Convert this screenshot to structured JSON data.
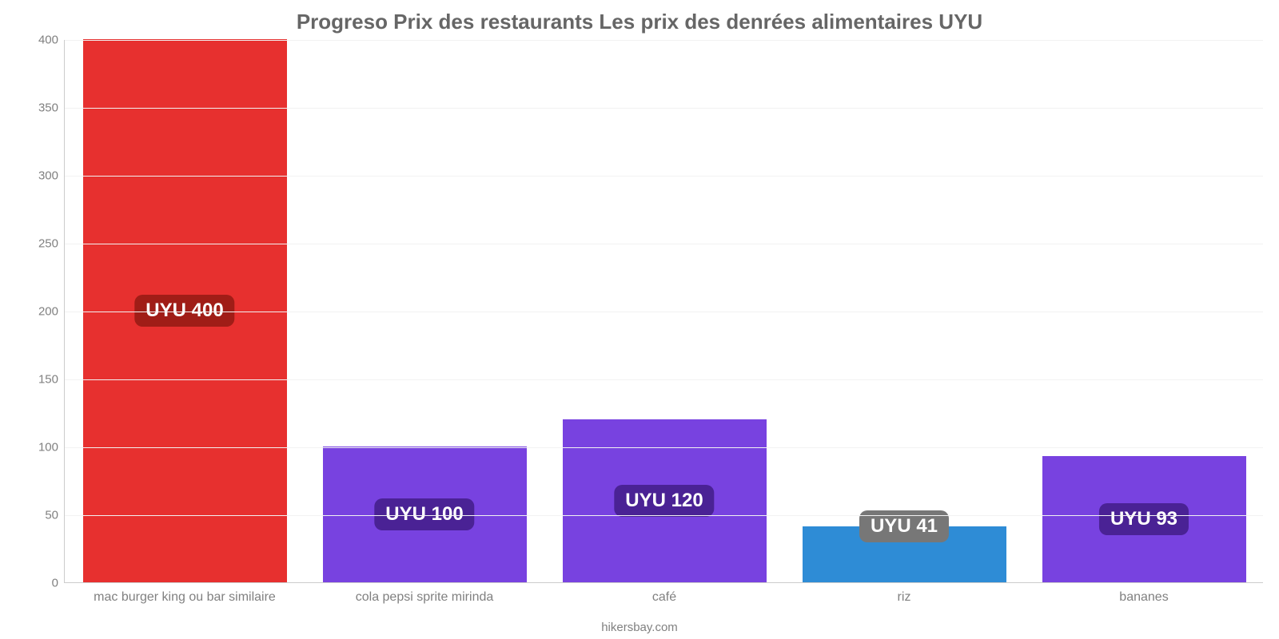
{
  "chart": {
    "type": "bar",
    "title": "Progreso Prix des restaurants Les prix des denrées alimentaires UYU",
    "title_fontsize": 26,
    "title_color": "#666666",
    "footer": "hikersbay.com",
    "footer_color": "#808080",
    "background_color": "#ffffff",
    "grid_color": "#f2f2f2",
    "axis_color": "#cccccc",
    "tick_color": "#808080",
    "tick_fontsize": 15,
    "xtick_fontsize": 16,
    "ylim": [
      0,
      400
    ],
    "ytick_step": 50,
    "bar_width": 0.85,
    "label_fontsize": 24,
    "label_text_color": "#ffffff",
    "label_radius": 10,
    "categories": [
      "mac burger king ou bar similaire",
      "cola pepsi sprite mirinda",
      "café",
      "riz",
      "bananes"
    ],
    "values": [
      400,
      100,
      120,
      41,
      93
    ],
    "value_labels": [
      "UYU 400",
      "UYU 100",
      "UYU 120",
      "UYU 41",
      "UYU 93"
    ],
    "bar_colors": [
      "#e7302f",
      "#7842e0",
      "#7842e0",
      "#2e8cd6",
      "#7842e0"
    ],
    "label_bg_colors": [
      "#a01d17",
      "#4a2295",
      "#4a2295",
      "#777777",
      "#4a2295"
    ]
  }
}
